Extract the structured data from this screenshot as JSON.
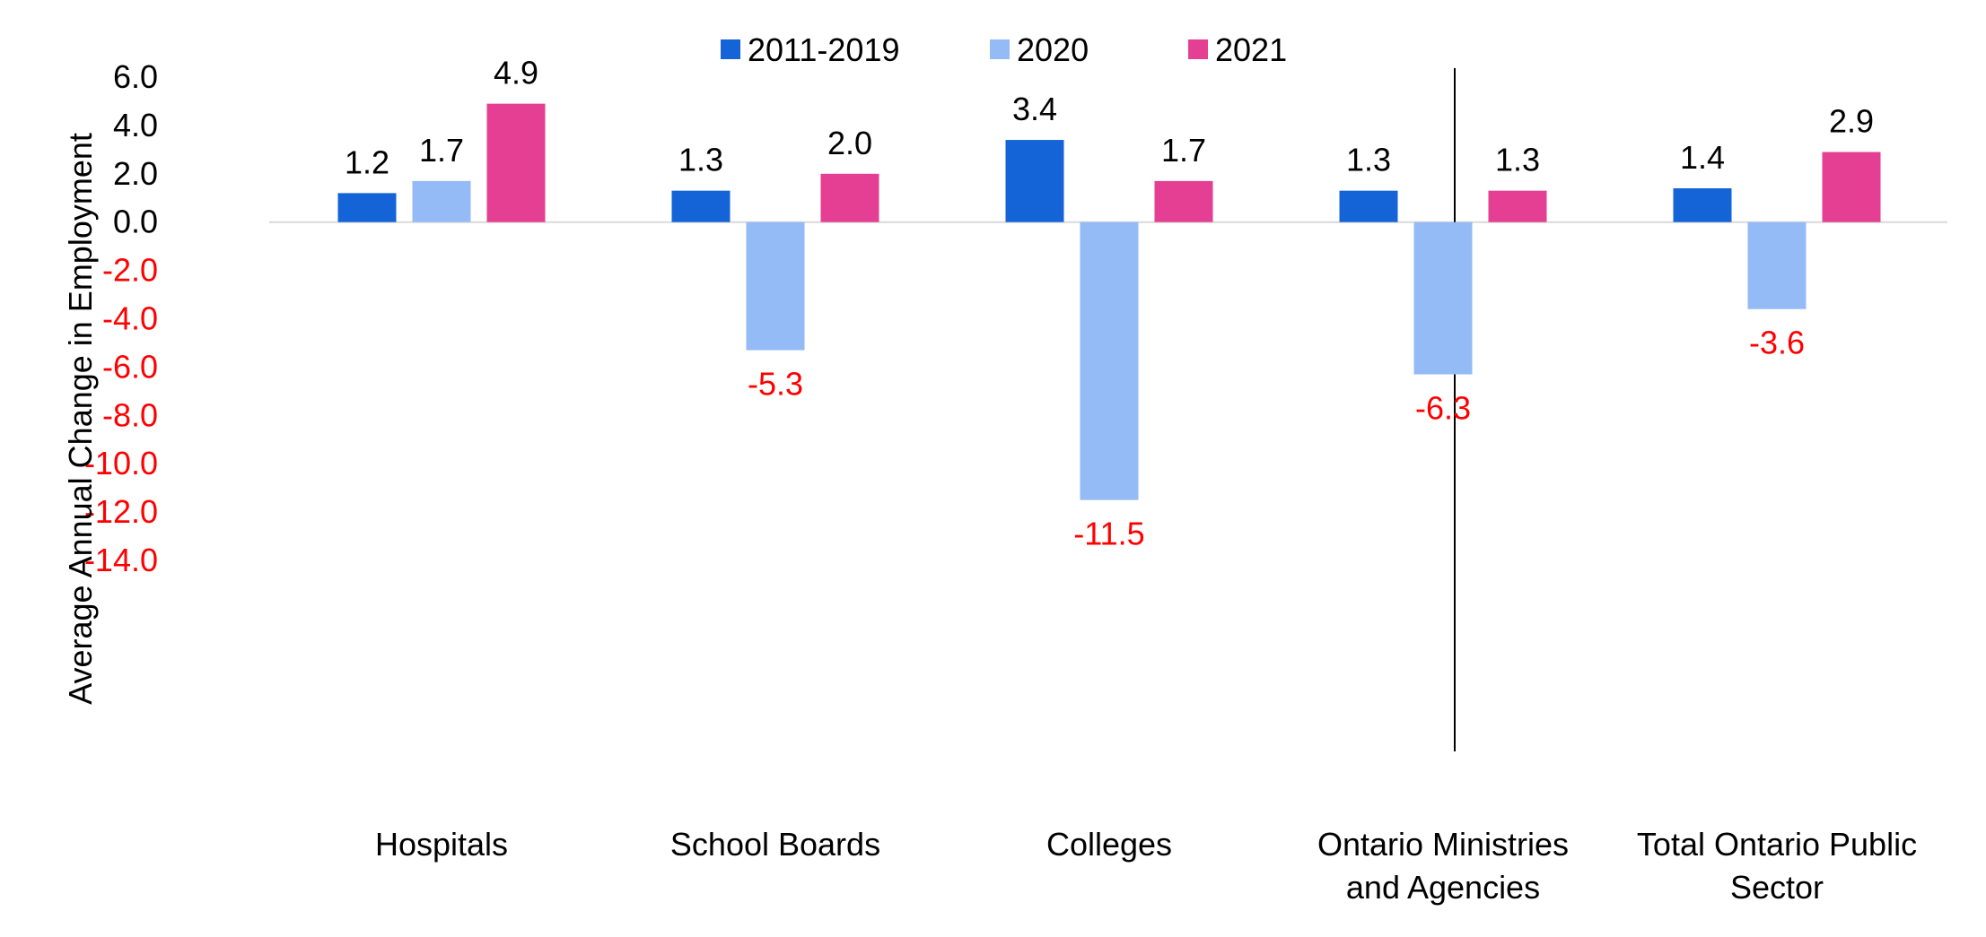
{
  "chart_data": {
    "type": "bar",
    "categories": [
      [
        "Hospitals"
      ],
      [
        "School Boards"
      ],
      [
        "Colleges"
      ],
      [
        "Ontario Ministries",
        "and Agencies"
      ],
      [
        "Total Ontario Public",
        "Sector"
      ]
    ],
    "series": [
      {
        "name": "2011-2019",
        "color": "#1464D8",
        "values": [
          1.2,
          1.3,
          3.4,
          1.3,
          1.4
        ]
      },
      {
        "name": "2020",
        "color": "#94BBF5",
        "values": [
          1.7,
          -5.3,
          -11.5,
          -6.3,
          -3.6
        ]
      },
      {
        "name": "2021",
        "color": "#E43F93",
        "values": [
          4.9,
          2.0,
          1.7,
          1.3,
          2.9
        ]
      }
    ],
    "value_labels": [
      [
        "1.2",
        "1.3",
        "3.4",
        "1.3",
        "1.4"
      ],
      [
        "1.7",
        "-5.3",
        "-11.5",
        "-6.3",
        "-3.6"
      ],
      [
        "4.9",
        "2.0",
        "1.7",
        "1.3",
        "2.9"
      ]
    ],
    "xlabel": "",
    "ylabel": "Average Annual Change in Employment",
    "ylim": [
      -14.0,
      6.0
    ],
    "yticks": [
      "6.0",
      "4.0",
      "2.0",
      "0.0",
      "-2.0",
      "-4.0",
      "-6.0",
      "-8.0",
      "-10.0",
      "-12.0",
      "-14.0"
    ],
    "ytick_values": [
      6,
      4,
      2,
      0,
      -2,
      -4,
      -6,
      -8,
      -10,
      -12,
      -14
    ],
    "negative_color": "#FF0000",
    "positive_color": "#000000",
    "grid": false,
    "legend_position": "top-center",
    "separator_before_category": 4
  }
}
